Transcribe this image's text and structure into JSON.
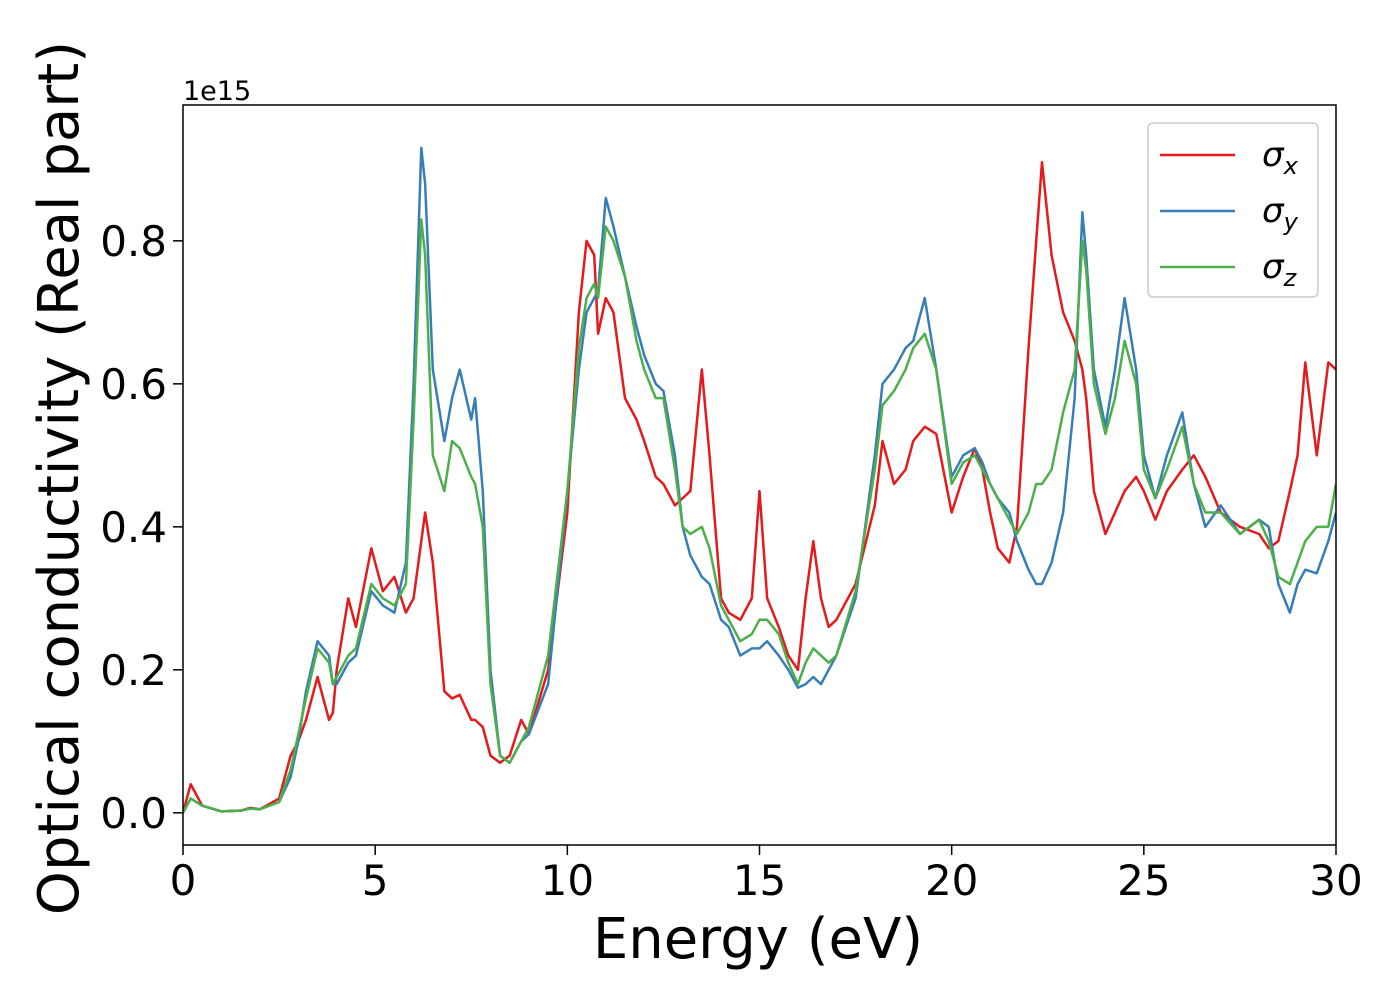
{
  "chart_data": {
    "type": "line",
    "xlabel": "Energy (eV)",
    "ylabel": "Optical conductivity (Real part)",
    "y_offset_label": "1e15",
    "xlim": [
      0,
      30
    ],
    "ylim": [
      -0.045,
      0.99
    ],
    "xticks": [
      0,
      5,
      10,
      15,
      20,
      25,
      30
    ],
    "yticks": [
      {
        "value": 0,
        "label": "0.0"
      },
      0.2,
      0.4,
      0.6,
      0.8
    ],
    "legend": "upper right",
    "x": [
      0,
      0.2,
      0.5,
      1,
      1.5,
      1.75,
      2,
      2.5,
      2.8,
      3,
      3.2,
      3.5,
      3.8,
      3.9,
      4,
      4.3,
      4.5,
      4.9,
      5.2,
      5.5,
      5.8,
      6,
      6.2,
      6.3,
      6.5,
      6.8,
      7,
      7.2,
      7.5,
      7.6,
      7.8,
      8,
      8.25,
      8.5,
      8.8,
      9,
      9.5,
      10,
      10.3,
      10.5,
      10.7,
      10.8,
      11,
      11.2,
      11.5,
      11.8,
      12,
      12.3,
      12.5,
      12.8,
      13,
      13.2,
      13.5,
      13.7,
      14,
      14.2,
      14.5,
      14.8,
      15,
      15.2,
      15.5,
      15.75,
      16,
      16.2,
      16.4,
      16.6,
      16.8,
      17,
      17.5,
      18,
      18.2,
      18.5,
      18.8,
      19,
      19.3,
      19.6,
      20,
      20.3,
      20.6,
      20.8,
      21,
      21.2,
      21.5,
      21.7,
      22,
      22.2,
      22.35,
      22.6,
      22.9,
      23.2,
      23.4,
      23.5,
      23.7,
      24,
      24.25,
      24.5,
      24.8,
      25,
      25.3,
      25.6,
      26,
      26.3,
      26.6,
      27,
      27.5,
      28,
      28.25,
      28.5,
      28.8,
      29,
      29.2,
      29.5,
      29.8,
      30
    ],
    "series": [
      {
        "name": "σx",
        "color": "#e41a1c",
        "values": [
          0,
          0.04,
          0.01,
          0.002,
          0.003,
          0.007,
          0.005,
          0.02,
          0.08,
          0.1,
          0.13,
          0.19,
          0.13,
          0.14,
          0.2,
          0.3,
          0.26,
          0.37,
          0.31,
          0.33,
          0.28,
          0.3,
          0.38,
          0.42,
          0.35,
          0.17,
          0.16,
          0.165,
          0.13,
          0.13,
          0.12,
          0.08,
          0.07,
          0.08,
          0.13,
          0.11,
          0.2,
          0.42,
          0.7,
          0.8,
          0.78,
          0.67,
          0.72,
          0.7,
          0.58,
          0.55,
          0.52,
          0.47,
          0.46,
          0.43,
          0.44,
          0.45,
          0.62,
          0.5,
          0.3,
          0.28,
          0.27,
          0.3,
          0.45,
          0.3,
          0.26,
          0.22,
          0.2,
          0.3,
          0.38,
          0.3,
          0.26,
          0.27,
          0.32,
          0.43,
          0.52,
          0.46,
          0.48,
          0.52,
          0.54,
          0.53,
          0.42,
          0.47,
          0.51,
          0.48,
          0.42,
          0.37,
          0.35,
          0.4,
          0.65,
          0.8,
          0.91,
          0.78,
          0.7,
          0.66,
          0.62,
          0.58,
          0.45,
          0.39,
          0.42,
          0.45,
          0.47,
          0.45,
          0.41,
          0.45,
          0.48,
          0.5,
          0.47,
          0.42,
          0.4,
          0.39,
          0.37,
          0.38,
          0.45,
          0.5,
          0.63,
          0.5,
          0.63,
          0.62
        ]
      },
      {
        "name": "σy",
        "color": "#377eb8",
        "values": [
          0,
          0.02,
          0.01,
          0.002,
          0.003,
          0.006,
          0.005,
          0.015,
          0.05,
          0.1,
          0.17,
          0.24,
          0.22,
          0.18,
          0.18,
          0.21,
          0.22,
          0.31,
          0.29,
          0.28,
          0.35,
          0.6,
          0.93,
          0.88,
          0.62,
          0.52,
          0.58,
          0.62,
          0.55,
          0.58,
          0.45,
          0.2,
          0.08,
          0.07,
          0.1,
          0.11,
          0.18,
          0.45,
          0.62,
          0.7,
          0.72,
          0.73,
          0.86,
          0.82,
          0.75,
          0.68,
          0.64,
          0.6,
          0.59,
          0.5,
          0.4,
          0.36,
          0.33,
          0.32,
          0.27,
          0.26,
          0.22,
          0.23,
          0.23,
          0.24,
          0.22,
          0.2,
          0.175,
          0.18,
          0.19,
          0.18,
          0.2,
          0.22,
          0.3,
          0.5,
          0.6,
          0.62,
          0.65,
          0.66,
          0.72,
          0.62,
          0.47,
          0.5,
          0.51,
          0.49,
          0.46,
          0.44,
          0.42,
          0.38,
          0.34,
          0.32,
          0.32,
          0.35,
          0.42,
          0.58,
          0.84,
          0.78,
          0.62,
          0.54,
          0.62,
          0.72,
          0.62,
          0.5,
          0.44,
          0.5,
          0.56,
          0.46,
          0.4,
          0.43,
          0.39,
          0.41,
          0.4,
          0.32,
          0.28,
          0.32,
          0.34,
          0.335,
          0.38,
          0.42
        ]
      },
      {
        "name": "σz",
        "color": "#4daf4a",
        "values": [
          0,
          0.02,
          0.01,
          0.002,
          0.003,
          0.006,
          0.005,
          0.015,
          0.06,
          0.11,
          0.16,
          0.23,
          0.21,
          0.18,
          0.19,
          0.22,
          0.23,
          0.32,
          0.3,
          0.29,
          0.32,
          0.55,
          0.83,
          0.78,
          0.5,
          0.45,
          0.52,
          0.51,
          0.47,
          0.46,
          0.4,
          0.18,
          0.08,
          0.07,
          0.1,
          0.12,
          0.22,
          0.45,
          0.65,
          0.72,
          0.74,
          0.72,
          0.82,
          0.8,
          0.75,
          0.66,
          0.62,
          0.58,
          0.58,
          0.48,
          0.4,
          0.39,
          0.4,
          0.37,
          0.29,
          0.27,
          0.24,
          0.25,
          0.27,
          0.27,
          0.25,
          0.21,
          0.18,
          0.21,
          0.23,
          0.22,
          0.21,
          0.22,
          0.31,
          0.48,
          0.57,
          0.59,
          0.62,
          0.65,
          0.67,
          0.62,
          0.46,
          0.49,
          0.5,
          0.48,
          0.46,
          0.44,
          0.41,
          0.39,
          0.42,
          0.46,
          0.46,
          0.48,
          0.56,
          0.62,
          0.8,
          0.76,
          0.6,
          0.53,
          0.58,
          0.66,
          0.6,
          0.48,
          0.44,
          0.48,
          0.54,
          0.46,
          0.42,
          0.42,
          0.39,
          0.41,
          0.38,
          0.33,
          0.32,
          0.35,
          0.38,
          0.4,
          0.4,
          0.46
        ]
      }
    ]
  }
}
